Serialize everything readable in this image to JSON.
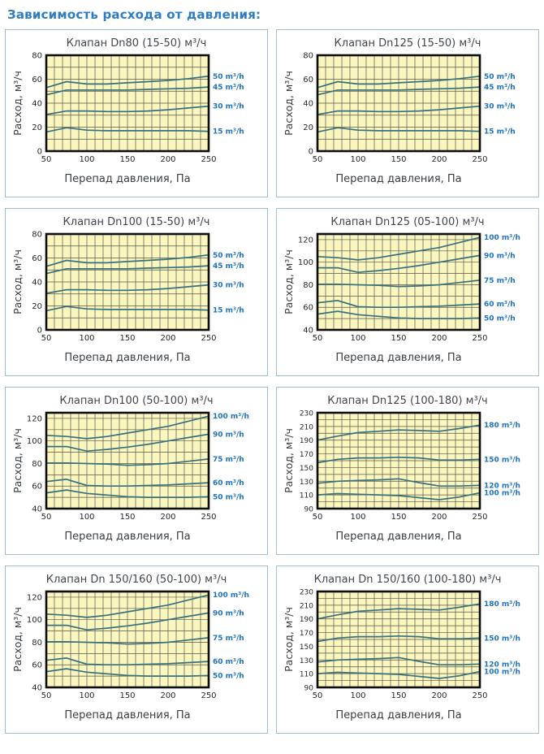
{
  "page": {
    "title": "Зависимость расхода от давления:",
    "colors": {
      "header_text": "#2e7cc1",
      "card_border": "#a3bfd4",
      "title_text": "#42474c",
      "plot_bg": "#f9f6c0",
      "grid_line": "#5a5545",
      "plot_border": "#0d0d0d",
      "series_line": "#37717c",
      "legend_text": "#1e73c0",
      "tick_text": "#26292c"
    }
  },
  "chart_data": [
    {
      "type": "line",
      "title": "Клапан Dn80 (15-50) м³/ч",
      "xlabel": "Перепад давления, Па",
      "ylabel": "Расход, м³/ч",
      "x": [
        50,
        75,
        100,
        125,
        150,
        175,
        200,
        225,
        250
      ],
      "xticks": [
        50,
        100,
        150,
        200,
        250
      ],
      "yticks": [
        0,
        20,
        40,
        60,
        80
      ],
      "xlim": [
        50,
        250
      ],
      "ylim": [
        0,
        80
      ],
      "grid_step": 10,
      "legend_position": "right",
      "series": [
        {
          "name": "50 m³/h",
          "values": [
            53,
            58,
            56,
            56,
            57,
            58,
            59,
            60.5,
            62.5
          ]
        },
        {
          "name": "45 m³/h",
          "values": [
            47,
            51,
            51,
            51,
            51,
            51.5,
            52,
            52.5,
            53.5
          ]
        },
        {
          "name": "30 m³/h",
          "values": [
            30.5,
            33.5,
            33.5,
            33,
            33,
            33.5,
            34.5,
            36,
            37.5
          ]
        },
        {
          "name": "15 m³/h",
          "values": [
            16,
            19.5,
            17.5,
            17,
            17,
            17,
            17,
            17,
            16.5
          ]
        }
      ]
    },
    {
      "type": "line",
      "title": "Клапан Dn125 (15-50) м³/ч",
      "xlabel": "Перепад давления, Па",
      "ylabel": "Расход, м³/ч",
      "x": [
        50,
        75,
        100,
        125,
        150,
        175,
        200,
        225,
        250
      ],
      "xticks": [
        50,
        100,
        150,
        200,
        250
      ],
      "yticks": [
        0,
        20,
        40,
        60,
        80
      ],
      "xlim": [
        50,
        250
      ],
      "ylim": [
        0,
        80
      ],
      "grid_step": 10,
      "legend_position": "right",
      "series": [
        {
          "name": "50 m³/h",
          "values": [
            53,
            58,
            56,
            56,
            57,
            58,
            59,
            60.5,
            62.5
          ]
        },
        {
          "name": "45 m³/h",
          "values": [
            47,
            51,
            51,
            51,
            51,
            51.5,
            52,
            52.5,
            53.5
          ]
        },
        {
          "name": "30 m³/h",
          "values": [
            30.5,
            33.5,
            33.5,
            33,
            33,
            33.5,
            34.5,
            36,
            37.5
          ]
        },
        {
          "name": "15 m³/h",
          "values": [
            16,
            19.5,
            17.5,
            17,
            17,
            17,
            17,
            17,
            16.5
          ]
        }
      ]
    },
    {
      "type": "line",
      "title": "Клапан Dn100 (15-50) м³/ч",
      "xlabel": "Перепад давления, Па",
      "ylabel": "Расход, м³/ч",
      "x": [
        50,
        75,
        100,
        125,
        150,
        175,
        200,
        225,
        250
      ],
      "xticks": [
        50,
        100,
        150,
        200,
        250
      ],
      "yticks": [
        0,
        20,
        40,
        60,
        80
      ],
      "xlim": [
        50,
        250
      ],
      "ylim": [
        0,
        80
      ],
      "grid_step": 10,
      "legend_position": "right",
      "series": [
        {
          "name": "50 m³/h",
          "values": [
            53,
            58,
            56,
            56,
            57,
            58,
            59,
            60.5,
            62.5
          ]
        },
        {
          "name": "45 m³/h",
          "values": [
            47,
            51,
            51,
            51,
            51,
            51.5,
            52,
            52.5,
            53.5
          ]
        },
        {
          "name": "30 m³/h",
          "values": [
            30.5,
            33.5,
            33.5,
            33,
            33,
            33.5,
            34.5,
            36,
            37.5
          ]
        },
        {
          "name": "15 m³/h",
          "values": [
            16,
            19.5,
            17.5,
            17,
            17,
            17,
            17,
            17,
            16.5
          ]
        }
      ]
    },
    {
      "type": "line",
      "title": "Клапан Dn125 (05-100) м³/ч",
      "xlabel": "Перепад давления, Па",
      "ylabel": "Расход, м³/ч",
      "x": [
        50,
        75,
        100,
        125,
        150,
        175,
        200,
        225,
        250
      ],
      "xticks": [
        50,
        100,
        150,
        200,
        250
      ],
      "yticks": [
        40,
        60,
        80,
        100,
        120
      ],
      "xlim": [
        50,
        250
      ],
      "ylim": [
        40,
        125
      ],
      "grid_step": 10,
      "legend_position": "right",
      "series": [
        {
          "name": "100 m³/h",
          "values": [
            105,
            104,
            102,
            104,
            107,
            110,
            113,
            117.5,
            122
          ]
        },
        {
          "name": "90 m³/h",
          "values": [
            95,
            95,
            91,
            92.5,
            94.5,
            97,
            100,
            103,
            106
          ]
        },
        {
          "name": "75 m³/h",
          "values": [
            80.5,
            80.5,
            80,
            79.5,
            78.5,
            79,
            80,
            82,
            84
          ]
        },
        {
          "name": "60 m³/h",
          "values": [
            64,
            66,
            60.5,
            60,
            60,
            60.5,
            61,
            62,
            63
          ]
        },
        {
          "name": "50 m³/h",
          "values": [
            54,
            56.5,
            53.5,
            52,
            50.5,
            50,
            50,
            50,
            50.5
          ]
        }
      ]
    },
    {
      "type": "line",
      "title": "Клапан Dn100 (50-100) м³/ч",
      "xlabel": "Перепад давления, Па",
      "ylabel": "Расход, м³/ч",
      "x": [
        50,
        75,
        100,
        125,
        150,
        175,
        200,
        225,
        250
      ],
      "xticks": [
        50,
        100,
        150,
        200,
        250
      ],
      "yticks": [
        40,
        60,
        80,
        100,
        120
      ],
      "xlim": [
        50,
        250
      ],
      "ylim": [
        40,
        125
      ],
      "grid_step": 10,
      "legend_position": "right",
      "series": [
        {
          "name": "100 m³/h",
          "values": [
            105,
            104,
            102,
            104,
            107,
            110,
            113,
            117.5,
            122
          ]
        },
        {
          "name": "90 m³/h",
          "values": [
            95,
            95,
            91,
            92.5,
            94.5,
            97,
            100,
            103,
            106
          ]
        },
        {
          "name": "75 m³/h",
          "values": [
            80.5,
            80.5,
            80,
            79.5,
            78.5,
            79,
            80,
            82,
            84
          ]
        },
        {
          "name": "60 m³/h",
          "values": [
            64,
            66,
            60.5,
            60,
            60,
            60.5,
            61,
            62,
            63
          ]
        },
        {
          "name": "50 m³/h",
          "values": [
            54,
            56.5,
            53.5,
            52,
            50.5,
            50,
            50,
            50,
            50.5
          ]
        }
      ]
    },
    {
      "type": "line",
      "title": "Клапан Dn125 (100-180) м³/ч",
      "xlabel": "Перепад давления, Па",
      "ylabel": "Расход, м³/ч",
      "x": [
        50,
        75,
        100,
        125,
        150,
        175,
        200,
        225,
        250
      ],
      "xticks": [
        50,
        100,
        150,
        200,
        250
      ],
      "yticks": [
        90,
        110,
        130,
        150,
        170,
        190,
        210,
        230
      ],
      "xlim": [
        50,
        250
      ],
      "ylim": [
        90,
        230
      ],
      "grid_step": 10,
      "legend_position": "right",
      "series": [
        {
          "name": "180 m³/h",
          "values": [
            190,
            196,
            201,
            203,
            205,
            204,
            203,
            207,
            212
          ]
        },
        {
          "name": "150 m³/h",
          "values": [
            157,
            162,
            164,
            164,
            165,
            164,
            161,
            161,
            162
          ]
        },
        {
          "name": "120 m³/h",
          "values": [
            127,
            130,
            131,
            132,
            133.5,
            128,
            123,
            123,
            124
          ]
        },
        {
          "name": "100 m³/h",
          "values": [
            110,
            112,
            111,
            110,
            109,
            106,
            103,
            107,
            113
          ]
        }
      ]
    },
    {
      "type": "line",
      "title": "Клапан Dn 150/160 (50-100) м³/ч",
      "xlabel": "Перепад давления, Па",
      "ylabel": "Расход, м³/ч",
      "x": [
        50,
        75,
        100,
        125,
        150,
        175,
        200,
        225,
        250
      ],
      "xticks": [
        50,
        100,
        150,
        200,
        250
      ],
      "yticks": [
        40,
        60,
        80,
        100,
        120
      ],
      "xlim": [
        50,
        250
      ],
      "ylim": [
        40,
        125
      ],
      "grid_step": 10,
      "legend_position": "right",
      "series": [
        {
          "name": "100 m³/h",
          "values": [
            105,
            104,
            102,
            104,
            107,
            110,
            113,
            117.5,
            122
          ]
        },
        {
          "name": "90 m³/h",
          "values": [
            95,
            95,
            91,
            92.5,
            94.5,
            97,
            100,
            103,
            106
          ]
        },
        {
          "name": "75 m³/h",
          "values": [
            80.5,
            80.5,
            80,
            79.5,
            78.5,
            79,
            80,
            82,
            84
          ]
        },
        {
          "name": "60 m³/h",
          "values": [
            64,
            66,
            60.5,
            60,
            60,
            60.5,
            61,
            62,
            63
          ]
        },
        {
          "name": "50 m³/h",
          "values": [
            54,
            56.5,
            53.5,
            52,
            50.5,
            50,
            50,
            50,
            50.5
          ]
        }
      ]
    },
    {
      "type": "line",
      "title": "Клапан Dn 150/160 (100-180) м³/ч",
      "xlabel": "Перепад давления, Па",
      "ylabel": "Расход, м³/ч",
      "x": [
        50,
        75,
        100,
        125,
        150,
        175,
        200,
        225,
        250
      ],
      "xticks": [
        50,
        100,
        150,
        200,
        250
      ],
      "yticks": [
        90,
        110,
        130,
        150,
        170,
        190,
        210,
        230
      ],
      "xlim": [
        50,
        250
      ],
      "ylim": [
        90,
        230
      ],
      "grid_step": 10,
      "legend_position": "right",
      "series": [
        {
          "name": "180 m³/h",
          "values": [
            190,
            196,
            201,
            203,
            205,
            204,
            203,
            207,
            212
          ]
        },
        {
          "name": "150 m³/h",
          "values": [
            157,
            162,
            164,
            164,
            165,
            164,
            161,
            161,
            162
          ]
        },
        {
          "name": "120 m³/h",
          "values": [
            127,
            130,
            131,
            132,
            133.5,
            128,
            123,
            123,
            124
          ]
        },
        {
          "name": "100 m³/h",
          "values": [
            110,
            112,
            111,
            110,
            109,
            106,
            103,
            107,
            113
          ]
        }
      ]
    }
  ]
}
